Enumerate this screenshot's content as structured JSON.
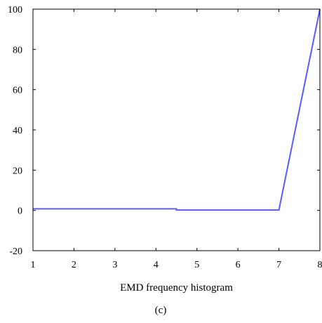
{
  "chart_data": {
    "type": "line",
    "title": "",
    "xlabel": "EMD frequency histogram",
    "ylabel": "",
    "caption": "(c)",
    "xlim": [
      1,
      8
    ],
    "ylim": [
      -20,
      100
    ],
    "xticks": [
      1,
      2,
      3,
      4,
      5,
      6,
      7,
      8
    ],
    "yticks": [
      -20,
      0,
      20,
      40,
      60,
      80,
      100
    ],
    "grid": false,
    "legend": "none",
    "series": [
      {
        "color": "#5a5aff",
        "x": [
          1,
          4.5,
          4.5,
          7,
          8
        ],
        "y": [
          0.8,
          0.8,
          0.2,
          0.2,
          100
        ]
      }
    ]
  }
}
